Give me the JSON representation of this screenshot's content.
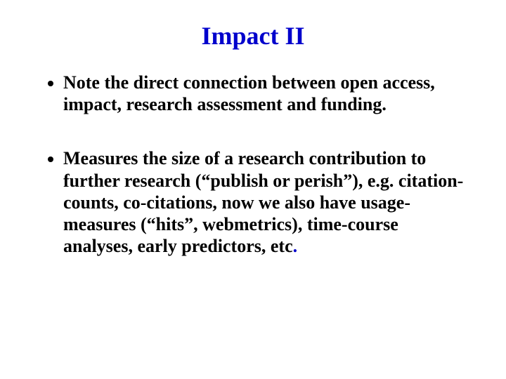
{
  "slide": {
    "title": "Impact II",
    "title_color": "#0000cc",
    "title_fontsize": 36,
    "body_fontsize": 26,
    "text_color": "#000000",
    "background_color": "#ffffff",
    "font_family": "Times New Roman",
    "bullets": [
      {
        "text": "Note the direct connection between open access, impact, research assessment and funding.",
        "trailing_char": ""
      },
      {
        "text": " Measures the size of a research contribution to further research (“publish or perish”), e.g. citation-counts, co-citations, now we also have usage-measures (“hits”, webmetrics), time-course analyses, early predictors, etc",
        "trailing_char": "."
      }
    ]
  }
}
